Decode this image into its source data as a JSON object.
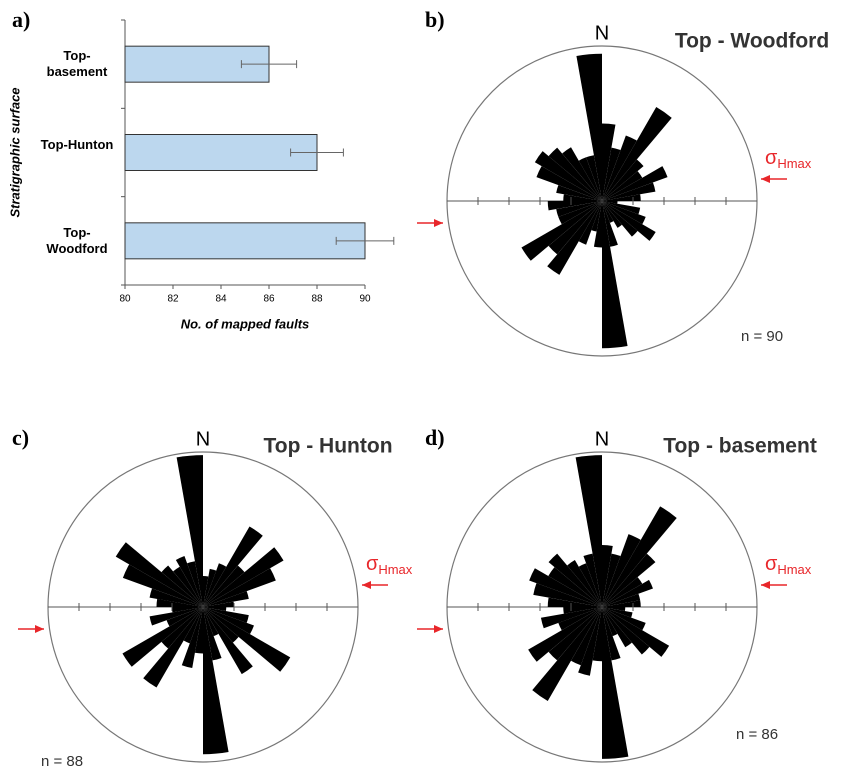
{
  "chart_data": [
    {
      "type": "bar",
      "panel_label": "a)",
      "categories": [
        "Top-basement",
        "Top-Hunton",
        "Top-Woodford"
      ],
      "values": [
        86,
        88,
        90
      ],
      "errors": [
        1.15,
        1.1,
        1.2
      ],
      "color": "#bcd7ee",
      "xlim": [
        80,
        90
      ],
      "xticks": [
        80,
        82,
        84,
        86,
        88,
        90
      ],
      "xlabel": "No. of mapped faults",
      "ylabel": "Stratigraphic surface"
    },
    {
      "type": "rose",
      "panel_label": "b)",
      "title": "Top - Woodford",
      "north_label": "N",
      "stress_label": "σ",
      "stress_subscript": "Hmax",
      "annotation": "n = 90",
      "color": "#000000",
      "rlim": [
        0,
        1
      ],
      "rticks": [
        0.2,
        0.4,
        0.6,
        0.8
      ],
      "values": [
        0.5,
        0.35,
        0.45,
        0.7,
        0.35,
        0.3,
        0.45,
        0.35,
        0.25,
        0.1,
        0.25,
        0.3,
        0.4,
        0.3,
        0.2,
        0.15,
        0.3,
        0.95,
        0.3,
        0.2,
        0.3,
        0.55,
        0.45,
        0.6,
        0.3,
        0.3,
        0.35,
        0.25,
        0.3,
        0.45,
        0.5,
        0.45,
        0.4,
        0.3,
        0.3,
        0.95
      ]
    },
    {
      "type": "rose",
      "panel_label": "c)",
      "title": "Top - Hunton",
      "north_label": "N",
      "stress_label": "σ",
      "stress_subscript": "Hmax",
      "annotation": "n = 88",
      "color": "#000000",
      "rlim": [
        0,
        1
      ],
      "rticks": [
        0.2,
        0.4,
        0.6,
        0.8
      ],
      "values": [
        0.2,
        0.25,
        0.3,
        0.6,
        0.35,
        0.6,
        0.5,
        0.3,
        0.2,
        0.15,
        0.3,
        0.35,
        0.65,
        0.3,
        0.5,
        0.2,
        0.35,
        0.95,
        0.3,
        0.4,
        0.25,
        0.6,
        0.35,
        0.6,
        0.25,
        0.35,
        0.2,
        0.3,
        0.35,
        0.55,
        0.65,
        0.35,
        0.3,
        0.35,
        0.3,
        0.98
      ]
    },
    {
      "type": "rose",
      "panel_label": "d)",
      "title": "Top - basement",
      "north_label": "N",
      "stress_label": "σ",
      "stress_subscript": "Hmax",
      "annotation": "n = 86",
      "color": "#000000",
      "rlim": [
        0,
        1
      ],
      "rticks": [
        0.2,
        0.4,
        0.6,
        0.8
      ],
      "values": [
        0.4,
        0.35,
        0.5,
        0.75,
        0.45,
        0.3,
        0.35,
        0.25,
        0.25,
        0.15,
        0.2,
        0.3,
        0.5,
        0.4,
        0.3,
        0.2,
        0.35,
        0.98,
        0.35,
        0.45,
        0.4,
        0.7,
        0.45,
        0.55,
        0.3,
        0.4,
        0.25,
        0.35,
        0.45,
        0.5,
        0.4,
        0.45,
        0.35,
        0.3,
        0.35,
        0.98
      ]
    }
  ]
}
